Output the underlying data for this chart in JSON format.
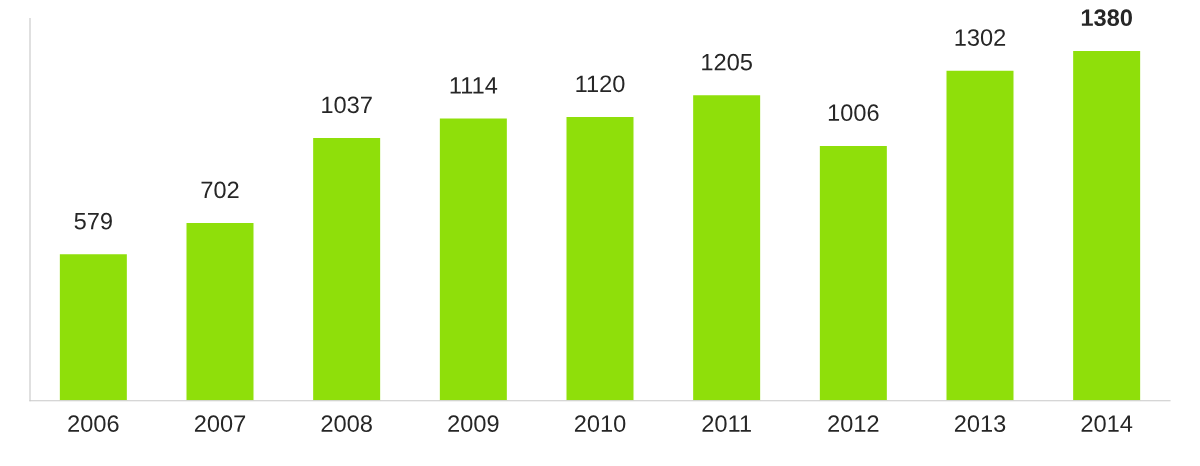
{
  "chart_data": {
    "type": "bar",
    "categories": [
      "2006",
      "2007",
      "2008",
      "2009",
      "2010",
      "2011",
      "2012",
      "2013",
      "2014"
    ],
    "values": [
      579,
      702,
      1037,
      1114,
      1120,
      1205,
      1006,
      1302,
      1380
    ],
    "color": "#8fdf0a",
    "data_labels": true,
    "tick_labels": "x",
    "grid": false,
    "legend": false
  }
}
